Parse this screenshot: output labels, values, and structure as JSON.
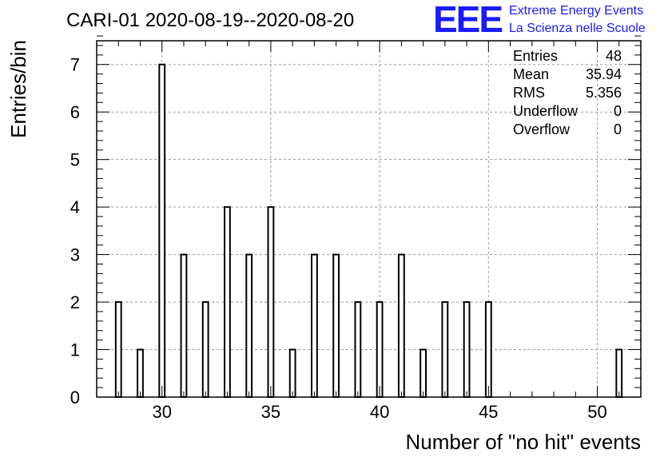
{
  "header": {
    "title": "CARI-01 2020-08-19--2020-08-20",
    "logo_mark": "EEE",
    "logo_line1": "Extreme Energy Events",
    "logo_line2": "La Scienza nelle Scuole",
    "logo_color": "#1a1aff"
  },
  "stats": {
    "entries_label": "Entries",
    "entries_value": "48",
    "mean_label": "Mean",
    "mean_value": "35.94",
    "rms_label": "RMS",
    "rms_value": "5.356",
    "underflow_label": "Underflow",
    "underflow_value": "0",
    "overflow_label": "Overflow",
    "overflow_value": "0"
  },
  "chart_data": {
    "type": "bar",
    "xlabel": "Number of \"no hit\" events",
    "ylabel": "Entries/bin",
    "xlim": [
      27,
      52
    ],
    "ylim": [
      0,
      7.5
    ],
    "bin_width": 0.25,
    "grid": true,
    "x_ticks": [
      30,
      35,
      40,
      45,
      50
    ],
    "y_ticks": [
      0,
      1,
      2,
      3,
      4,
      5,
      6,
      7
    ],
    "bars": [
      {
        "x": 28,
        "value": 2
      },
      {
        "x": 29,
        "value": 1
      },
      {
        "x": 30,
        "value": 7
      },
      {
        "x": 31,
        "value": 3
      },
      {
        "x": 32,
        "value": 2
      },
      {
        "x": 33,
        "value": 4
      },
      {
        "x": 34,
        "value": 3
      },
      {
        "x": 35,
        "value": 4
      },
      {
        "x": 36,
        "value": 1
      },
      {
        "x": 37,
        "value": 3
      },
      {
        "x": 38,
        "value": 3
      },
      {
        "x": 39,
        "value": 2
      },
      {
        "x": 40,
        "value": 2
      },
      {
        "x": 41,
        "value": 3
      },
      {
        "x": 42,
        "value": 1
      },
      {
        "x": 43,
        "value": 2
      },
      {
        "x": 44,
        "value": 2
      },
      {
        "x": 45,
        "value": 2
      },
      {
        "x": 51,
        "value": 1
      }
    ]
  }
}
